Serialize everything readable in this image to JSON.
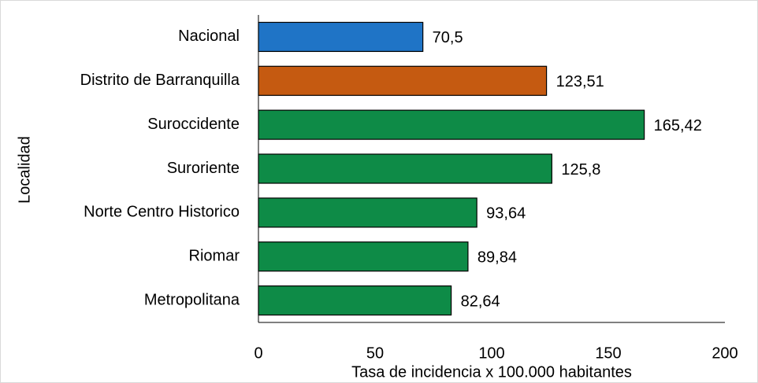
{
  "chart_data": {
    "type": "barh",
    "categories": [
      "Nacional",
      "Distrito de Barranquilla",
      "Suroccidente",
      "Suroriente",
      "Norte Centro Historico",
      "Riomar",
      "Metropolitana"
    ],
    "values": [
      70.5,
      123.51,
      165.42,
      125.8,
      93.64,
      89.84,
      82.64
    ],
    "value_labels": [
      "70,5",
      "123,51",
      "165,42",
      "125,8",
      "93,64",
      "89,84",
      "82,64"
    ],
    "colors": [
      "#1f74c6",
      "#c55a11",
      "#0e8b47",
      "#0e8b47",
      "#0e8b47",
      "#0e8b47",
      "#0e8b47"
    ],
    "xlabel": "Tasa de incidencia x 100.000 habitantes",
    "ylabel": "Localidad",
    "xlim": [
      0,
      200
    ],
    "xticks": [
      0,
      50,
      100,
      150,
      200
    ],
    "grid": false
  }
}
